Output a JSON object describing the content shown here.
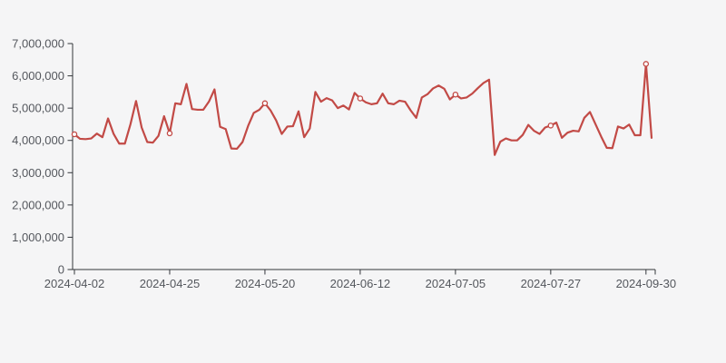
{
  "page": {
    "background_color": "#f5f5f6"
  },
  "chart_data": {
    "type": "line",
    "title": "",
    "xlabel": "",
    "ylabel": "",
    "legend": "none",
    "grid": "off",
    "ylim": [
      0,
      7000000
    ],
    "y_tick_step": 1000000,
    "y_tick_labels": [
      "0",
      "1,000,000",
      "2,000,000",
      "3,000,000",
      "4,000,000",
      "5,000,000",
      "6,000,000",
      "7,000,000"
    ],
    "x_ticks": [
      {
        "index": 0,
        "label": "2024-04-02"
      },
      {
        "index": 17,
        "label": "2024-04-25"
      },
      {
        "index": 34,
        "label": "2024-05-20"
      },
      {
        "index": 51,
        "label": "2024-06-12"
      },
      {
        "index": 68,
        "label": "2024-07-05"
      },
      {
        "index": 85,
        "label": "2024-07-27"
      },
      {
        "index": 102,
        "label": "2024-09-30"
      }
    ],
    "marked_point_indices": [
      0,
      17,
      34,
      51,
      68,
      85,
      102
    ],
    "values": [
      4190000,
      4050000,
      4040000,
      4060000,
      4210000,
      4100000,
      4680000,
      4200000,
      3900000,
      3900000,
      4500000,
      5220000,
      4400000,
      3950000,
      3930000,
      4140000,
      4750000,
      4220000,
      5150000,
      5120000,
      5750000,
      4970000,
      4950000,
      4950000,
      5200000,
      5580000,
      4420000,
      4350000,
      3750000,
      3740000,
      3950000,
      4450000,
      4850000,
      4950000,
      5150000,
      4930000,
      4620000,
      4200000,
      4430000,
      4440000,
      4900000,
      4100000,
      4370000,
      5500000,
      5200000,
      5310000,
      5240000,
      5000000,
      5080000,
      4960000,
      5470000,
      5300000,
      5180000,
      5120000,
      5150000,
      5450000,
      5150000,
      5120000,
      5230000,
      5200000,
      4930000,
      4700000,
      5330000,
      5430000,
      5610000,
      5700000,
      5600000,
      5270000,
      5420000,
      5300000,
      5330000,
      5450000,
      5620000,
      5780000,
      5880000,
      3550000,
      3960000,
      4060000,
      4000000,
      4000000,
      4170000,
      4480000,
      4300000,
      4200000,
      4400000,
      4460000,
      4550000,
      4080000,
      4240000,
      4300000,
      4280000,
      4700000,
      4880000,
      4500000,
      4120000,
      3770000,
      3760000,
      4430000,
      4370000,
      4490000,
      4160000,
      4160000,
      6370000,
      4080000
    ],
    "line_color": "#c24a46",
    "marker_fill": "#fdfdfd",
    "axis_color": "#33363b",
    "label_color": "#54575d",
    "background_color": "#f5f5f6"
  }
}
